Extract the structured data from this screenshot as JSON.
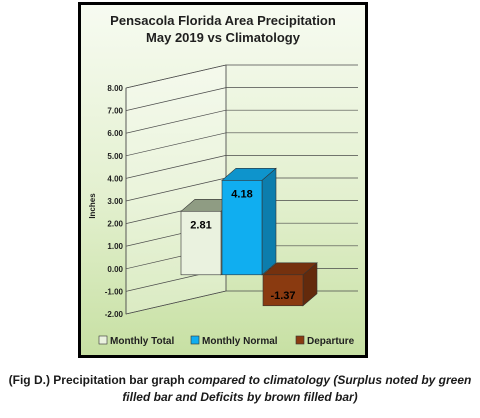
{
  "chart_data": {
    "type": "bar",
    "title": [
      "Pensacola Florida Area Precipitation",
      "May 2019 vs Climatology"
    ],
    "ylabel": "Inches",
    "xlabel": "",
    "ylim": [
      -2,
      8
    ],
    "ytick_step": 1,
    "ytick_labels": [
      "8.00",
      "7.00",
      "6.00",
      "5.00",
      "4.00",
      "3.00",
      "2.00",
      "1.00",
      "0.00",
      "-1.00",
      "-2.00"
    ],
    "grid": true,
    "legend_position": "bottom",
    "series": [
      {
        "name": "Monthly Total",
        "value": 2.81,
        "label": "2.81",
        "color": "#eaf2df"
      },
      {
        "name": "Monthly Normal",
        "value": 4.18,
        "label": "4.18",
        "color": "#10aef0"
      },
      {
        "name": "Departure",
        "value": -1.37,
        "label": "-1.37",
        "color": "#8a3a10"
      }
    ]
  },
  "caption": {
    "prefix": "(Fig D.) Precipitation bar graph ",
    "italic": "compared to climatology (Surplus noted by green filled bar and Deficits by brown filled bar)"
  }
}
